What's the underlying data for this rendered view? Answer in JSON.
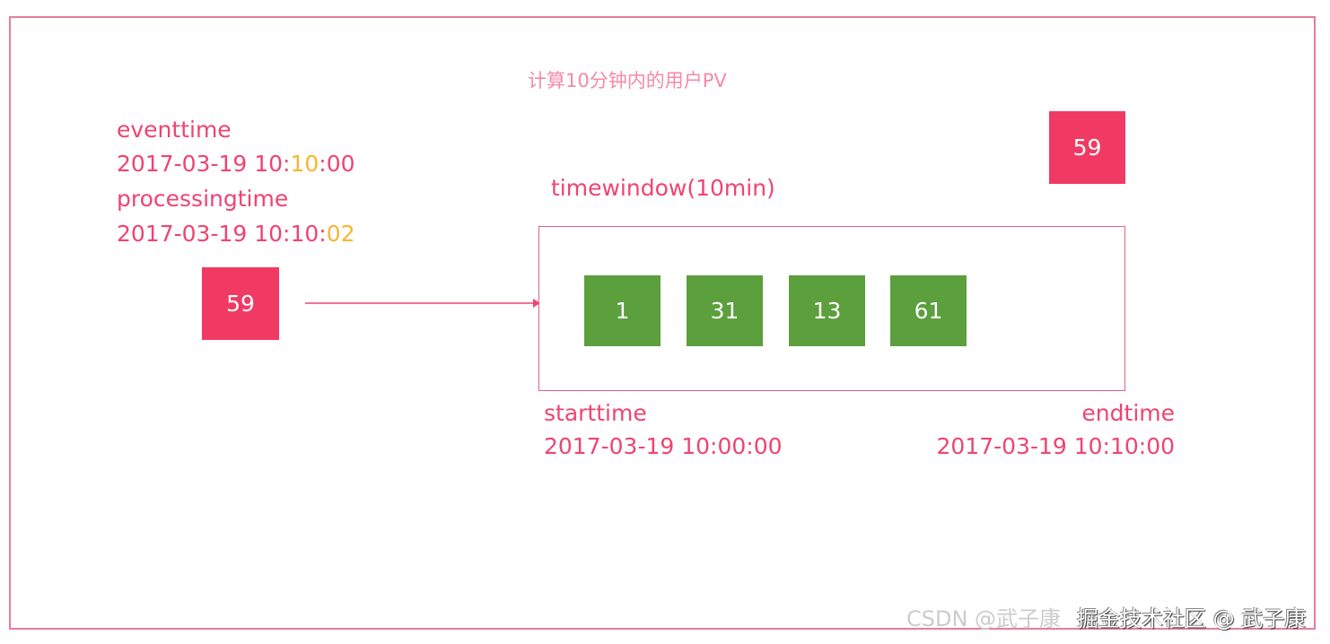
{
  "title": "计算10分钟内的用户PV",
  "event": {
    "label": "eventtime",
    "time_pre": "2017-03-19 10:",
    "time_hl": "10",
    "time_post": ":00"
  },
  "processing": {
    "label": "processingtime",
    "time_pre": "2017-03-19 10:10:",
    "time_hl": "02"
  },
  "incoming_value": "59",
  "late_value": "59",
  "window_label": "timewindow(10min)",
  "window_values": [
    "1",
    "31",
    "13",
    "61"
  ],
  "start": {
    "label": "starttime",
    "time": "2017-03-19 10:00:00"
  },
  "end": {
    "label": "endtime",
    "time": "2017-03-19 10:10:00"
  },
  "watermark": "掘金技术社区 @ 武子康",
  "watermark2": "CSDN @武子康",
  "colors": {
    "text": "#ef4471",
    "highlight": "#f5b731",
    "event_box": "#f03a64",
    "window_item": "#5c9f3d"
  }
}
